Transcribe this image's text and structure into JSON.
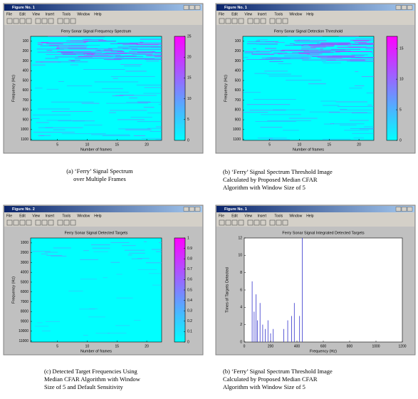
{
  "panels": [
    {
      "window_title": "Figure No. 1",
      "menu": [
        "File",
        "Edit",
        "View",
        "Insert",
        "Tools",
        "Window",
        "Help"
      ],
      "plot": {
        "kind": "image",
        "title": "Ferry Sonar Signal Frequency Spectrum",
        "xlabel": "Number of frames",
        "ylabel": "Frequency (Hz)",
        "xlim": [
          0.5,
          22.5
        ],
        "xticks": [
          5,
          10,
          15,
          20
        ],
        "ylim": [
          50,
          1110
        ],
        "yticks": [
          100,
          200,
          300,
          400,
          500,
          600,
          700,
          800,
          900,
          1000,
          1100
        ],
        "clim": [
          0,
          25
        ],
        "cticks": [
          0,
          5,
          10,
          15,
          20,
          25
        ]
      },
      "caption": [
        "(a) ‘Ferry’ Signal Spectrum",
        "over Multiple Frames"
      ]
    },
    {
      "window_title": "Figure No. 1",
      "menu": [
        "File",
        "Edit",
        "View",
        "Insert",
        "Tools",
        "Window",
        "Help"
      ],
      "plot": {
        "kind": "image",
        "title": "Ferry Sonar Signal Detection Threshold",
        "xlabel": "Number of frames",
        "ylabel": "Frequency (Hz)",
        "xlim": [
          0.5,
          22.5
        ],
        "xticks": [
          5,
          10,
          15,
          20
        ],
        "ylim": [
          50,
          1110
        ],
        "yticks": [
          100,
          200,
          300,
          400,
          500,
          600,
          700,
          800,
          900,
          1000,
          1100
        ],
        "clim": [
          0,
          17
        ],
        "cticks": [
          0,
          5,
          10,
          15
        ]
      },
      "caption": [
        "(b) ‘Ferry’ Signal Spectrum Threshold Image",
        "Calculated by Proposed Median CFAR",
        "Algorithm with Window Size of 5"
      ]
    },
    {
      "window_title": "Figure No. 2",
      "menu": [
        "File",
        "Edit",
        "View",
        "Insert",
        "Tools",
        "Window",
        "Help"
      ],
      "plot": {
        "kind": "image",
        "title": "Ferry Sonar Signal Detected Targets",
        "xlabel": "Number of frames",
        "ylabel": "Frequency (Hz)",
        "xlim": [
          0.5,
          22.5
        ],
        "xticks": [
          5,
          10,
          15,
          20
        ],
        "ylim": [
          500,
          11100
        ],
        "yticks": [
          1000,
          2000,
          3000,
          4000,
          5000,
          6000,
          7000,
          8000,
          9000,
          10000,
          11000
        ],
        "clim": [
          0,
          1
        ],
        "cticks": [
          0,
          0.1,
          0.2,
          0.3,
          0.4,
          0.5,
          0.6,
          0.7,
          0.8,
          0.9,
          1
        ]
      },
      "caption": [
        "(c) Detected Target Frequencies Using",
        "Median CFAR Algorithm with Window",
        "Size of 5 and Default Sensitivity"
      ]
    },
    {
      "window_title": "Figure No. 1",
      "menu": [
        "File",
        "Edit",
        "View",
        "Insert",
        "Tools",
        "Window",
        "Help"
      ],
      "plot": {
        "kind": "stem",
        "title": "Ferry Sonar Signal Integrated Detected Targets",
        "xlabel": "Frequency (Hz)",
        "ylabel": "Times of Targets Detected",
        "xlim": [
          0,
          1200
        ],
        "xticks": [
          0,
          200,
          400,
          600,
          800,
          1000,
          1200
        ],
        "ylim": [
          0,
          12
        ],
        "yticks": [
          0,
          2,
          4,
          6,
          8,
          10,
          12
        ],
        "color": "#3333cc",
        "x": [
          60,
          75,
          90,
          100,
          120,
          140,
          160,
          180,
          200,
          220,
          300,
          330,
          360,
          380,
          420,
          440
        ],
        "values": [
          7,
          3.5,
          5.5,
          2.5,
          4.5,
          2,
          1.5,
          2.5,
          1,
          1.5,
          1.5,
          2.5,
          3,
          4.5,
          3,
          12
        ]
      },
      "caption": [
        "(b) ‘Ferry’ Signal Spectrum Threshold Image",
        "Calculated by Proposed Median CFAR",
        "Algorithm with Window Size of 5"
      ]
    }
  ]
}
